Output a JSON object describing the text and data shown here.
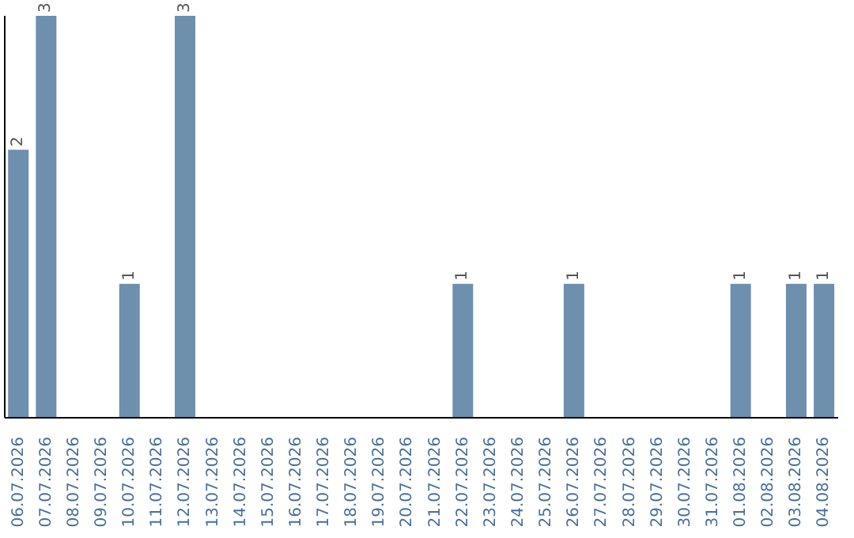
{
  "chart_data": {
    "type": "bar",
    "categories": [
      "06.07.2026",
      "07.07.2026",
      "08.07.2026",
      "09.07.2026",
      "10.07.2026",
      "11.07.2026",
      "12.07.2026",
      "13.07.2026",
      "14.07.2026",
      "15.07.2026",
      "16.07.2026",
      "17.07.2026",
      "18.07.2026",
      "19.07.2026",
      "20.07.2026",
      "21.07.2026",
      "22.07.2026",
      "23.07.2026",
      "24.07.2026",
      "25.07.2026",
      "26.07.2026",
      "27.07.2026",
      "28.07.2026",
      "29.07.2026",
      "30.07.2026",
      "31.07.2026",
      "01.08.2026",
      "02.08.2026",
      "03.08.2026",
      "04.08.2026"
    ],
    "values": [
      2,
      3,
      0,
      0,
      1,
      0,
      3,
      0,
      0,
      0,
      0,
      0,
      0,
      0,
      0,
      0,
      1,
      0,
      0,
      0,
      1,
      0,
      0,
      0,
      0,
      0,
      1,
      0,
      1,
      1
    ],
    "value_labels": [
      "2",
      "3",
      null,
      null,
      "1",
      null,
      "3",
      null,
      null,
      null,
      null,
      null,
      null,
      null,
      null,
      null,
      "1",
      null,
      null,
      null,
      "1",
      null,
      null,
      null,
      null,
      null,
      "1",
      null,
      "1",
      "1"
    ],
    "color": "#6e8fae"
  }
}
